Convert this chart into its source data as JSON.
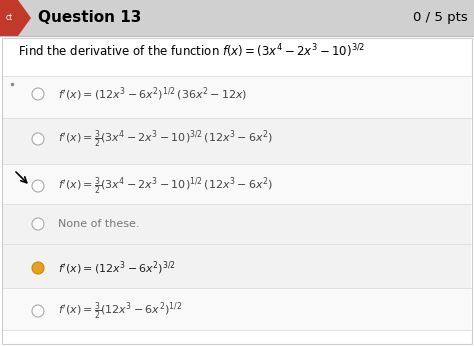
{
  "title": "Question 13",
  "score": "0 / 5 pts",
  "question": "Find the derivative of the function $f(x) = (3x^4 - 2x^3 - 10)^{3/2}$",
  "bg_color": "#e8e8e8",
  "header_bg": "#d0d0d0",
  "header_red": "#c0392b",
  "content_bg": "#f0f0f0",
  "white_band": "#ffffff",
  "light_band": "#e8e8e8",
  "radio_color": "#aaaaaa",
  "selected_color": "#e8a020",
  "text_color": "#333333",
  "dim_text_color": "#888888",
  "option_labels": [
    "$f'(x) = (12x^3 - 6x^2)^{1/2}\\,(36x^2 - 12x)$",
    "$f'(x) = \\frac{3}{2}(3x^4 - 2x^3 - 10)^{3/2}\\,(12x^3 - 6x^2)$",
    "$f'(x) = \\frac{3}{2}(3x^4 - 2x^3 - 10)^{1/2}\\,(12x^3 - 6x^2)$",
    "None of these.",
    "$f'(x) = (12x^3 - 6x^2)^{3/2}$",
    "$f'(x) = \\frac{3}{2}(12x^3 - 6x^2)^{1/2}$"
  ],
  "selected_idx": 4,
  "arrow_idx": 2,
  "dot_idx": 0,
  "band_colors": [
    "#f8f8f8",
    "#f0f0f0",
    "#f8f8f8",
    "#f0f0f0",
    "#f8f8f8",
    "#f0f0f0"
  ]
}
